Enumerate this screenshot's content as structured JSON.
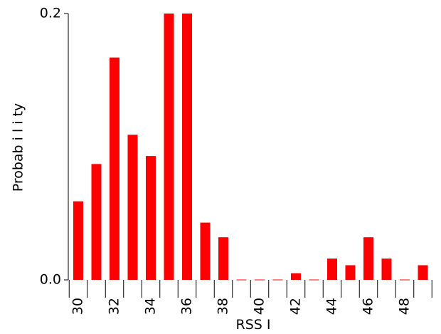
{
  "chart_data": {
    "type": "bar",
    "title": "",
    "xlabel": "RSS I",
    "ylabel": "Probab i l i ty",
    "categories": [
      30,
      31,
      32,
      33,
      34,
      35,
      36,
      37,
      38,
      39,
      40,
      41,
      42,
      43,
      44,
      45,
      46,
      47,
      48,
      49
    ],
    "values": [
      0.059,
      0.087,
      0.167,
      0.109,
      0.093,
      0.2,
      0.2,
      0.043,
      0.032,
      0.0,
      0.0,
      0.0,
      0.005,
      0.0,
      0.016,
      0.011,
      0.032,
      0.016,
      0.0,
      0.011
    ],
    "x_tick_labels": [
      "30",
      "32",
      "34",
      "36",
      "38",
      "40",
      "42",
      "44",
      "46",
      "48"
    ],
    "y_tick_labels": [
      "0.0",
      "0.2"
    ],
    "y_ticks": [
      0.0,
      0.2
    ],
    "ylim": [
      0,
      0.2
    ],
    "grid": false,
    "legend": "none",
    "bar_color": "#ff0000",
    "axis_color": "#000000"
  }
}
